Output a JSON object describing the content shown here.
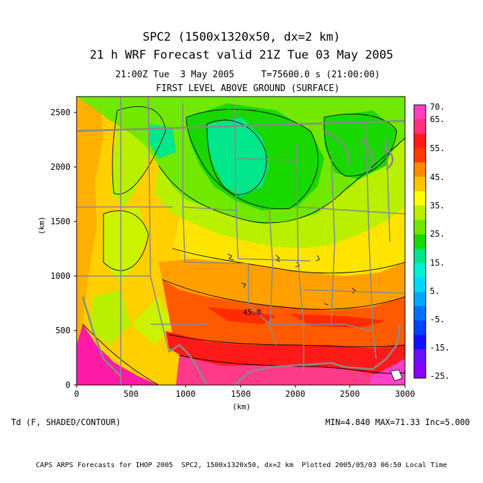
{
  "title": {
    "line1": "SPC2 (1500x1320x50, dx=2 km)",
    "line2": "21 h WRF Forecast valid 21Z Tue 03 May 2005"
  },
  "subtitle": {
    "time_line": "21:00Z Tue  3 May 2005     T=75600.0 s (21:00:00)",
    "level_line": "FIRST LEVEL ABOVE GROUND (SURFACE)"
  },
  "axes": {
    "xlabel": "(km)",
    "ylabel": "(km)",
    "xticks": [
      "0",
      "500",
      "1000",
      "1500",
      "2000",
      "2500",
      "3000"
    ],
    "yticks": [
      "0",
      "500",
      "1000",
      "1500",
      "2000",
      "2500"
    ]
  },
  "colorbar": {
    "labels": [
      "70.",
      "65.",
      "55.",
      "45.",
      "35.",
      "25.",
      "15.",
      "5.",
      "-5.",
      "-15.",
      "-25."
    ],
    "colors": [
      "#ff3fbf",
      "#ff2f80",
      "#ff1a1a",
      "#ff3a00",
      "#ff8a00",
      "#ffc400",
      "#ffff00",
      "#b8f000",
      "#6ee800",
      "#18d800",
      "#00e68a",
      "#00f0d0",
      "#00d8ff",
      "#00a8ff",
      "#0070ff",
      "#0040ff",
      "#1010ff",
      "#6a10ff",
      "#8a00ff"
    ]
  },
  "map_contour_label": "45.0",
  "bottom": {
    "variable": "Td (F, SHADED/CONTOUR)",
    "stats": "MIN=4.840 MAX=71.33 Inc=5.000"
  },
  "footer": "CAPS ARPS Forecasts for IHOP 2005  SPC2, 1500x1320x50, dx=2 km  Plotted 2005/05/03 06:50 Local Time"
}
